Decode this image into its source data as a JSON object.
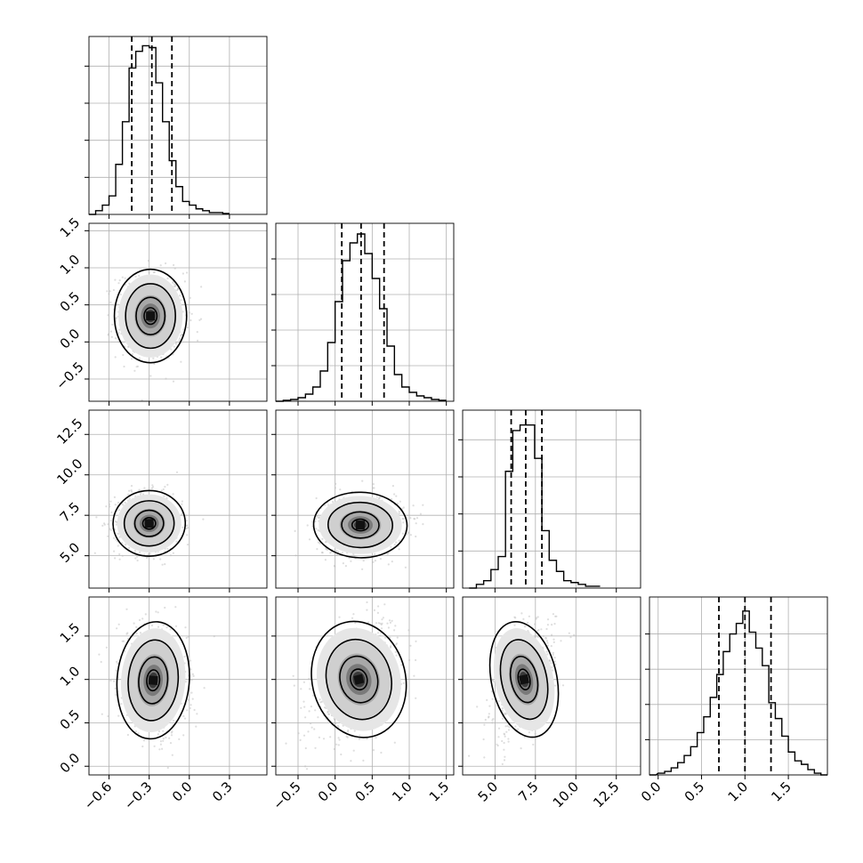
{
  "chart_data": {
    "type": "corner",
    "grid": true,
    "parameters": [
      {
        "range": [
          -0.75,
          0.58
        ],
        "ticks": [
          -0.6,
          -0.3,
          0.0,
          0.3
        ],
        "tick_labels": [
          "−0.6",
          "−0.3",
          "0.0",
          "0.3"
        ]
      },
      {
        "range": [
          -0.8,
          1.6
        ],
        "ticks": [
          -0.5,
          0.0,
          0.5,
          1.0,
          1.5
        ],
        "tick_labels": [
          "−0.5",
          "0.0",
          "0.5",
          "1.0",
          "1.5"
        ]
      },
      {
        "range": [
          3.0,
          14.0
        ],
        "ticks": [
          5.0,
          7.5,
          10.0,
          12.5
        ],
        "tick_labels": [
          "5.0",
          "7.5",
          "10.0",
          "12.5"
        ]
      },
      {
        "range": [
          -0.1,
          1.95
        ],
        "ticks": [
          0.0,
          0.5,
          1.0,
          1.5
        ],
        "tick_labels": [
          "0.0",
          "0.5",
          "1.0",
          "1.5"
        ]
      }
    ],
    "histograms": [
      {
        "bin_width": 0.05,
        "bins": [
          [
            -0.75,
            0
          ],
          [
            -0.7,
            2
          ],
          [
            -0.65,
            5
          ],
          [
            -0.6,
            10
          ],
          [
            -0.55,
            27
          ],
          [
            -0.5,
            50
          ],
          [
            -0.45,
            79
          ],
          [
            -0.4,
            88
          ],
          [
            -0.35,
            91
          ],
          [
            -0.3,
            90
          ],
          [
            -0.25,
            71
          ],
          [
            -0.2,
            50
          ],
          [
            -0.15,
            29
          ],
          [
            -0.1,
            15
          ],
          [
            -0.05,
            7
          ],
          [
            0.0,
            5
          ],
          [
            0.05,
            3
          ],
          [
            0.1,
            2
          ],
          [
            0.15,
            1
          ],
          [
            0.2,
            1
          ],
          [
            0.25,
            0.5
          ]
        ],
        "quantiles": [
          -0.43,
          -0.28,
          -0.13
        ],
        "ymax": 96
      },
      {
        "bin_width": 0.1,
        "bins": [
          [
            -0.8,
            0
          ],
          [
            -0.7,
            0.5
          ],
          [
            -0.6,
            1
          ],
          [
            -0.5,
            2
          ],
          [
            -0.4,
            4
          ],
          [
            -0.3,
            8
          ],
          [
            -0.2,
            17
          ],
          [
            -0.1,
            33
          ],
          [
            0.0,
            56
          ],
          [
            0.1,
            79
          ],
          [
            0.2,
            89
          ],
          [
            0.3,
            94
          ],
          [
            0.4,
            83
          ],
          [
            0.5,
            69
          ],
          [
            0.6,
            52
          ],
          [
            0.7,
            31
          ],
          [
            0.8,
            15
          ],
          [
            0.9,
            8
          ],
          [
            1.0,
            5
          ],
          [
            1.1,
            3
          ],
          [
            1.2,
            2
          ],
          [
            1.3,
            1
          ],
          [
            1.4,
            0.5
          ]
        ],
        "quantiles": [
          0.09,
          0.35,
          0.66
        ],
        "ymax": 100
      },
      {
        "bin_width": 0.45,
        "bins": [
          [
            3.4,
            0
          ],
          [
            3.85,
            2
          ],
          [
            4.3,
            4
          ],
          [
            4.75,
            10
          ],
          [
            5.2,
            17
          ],
          [
            5.65,
            63
          ],
          [
            6.1,
            85
          ],
          [
            6.55,
            88
          ],
          [
            7.0,
            88
          ],
          [
            7.45,
            70
          ],
          [
            7.9,
            31
          ],
          [
            8.35,
            15
          ],
          [
            8.8,
            9
          ],
          [
            9.25,
            4
          ],
          [
            9.7,
            3
          ],
          [
            10.15,
            2
          ],
          [
            10.6,
            1
          ],
          [
            11.05,
            1
          ]
        ],
        "quantiles": [
          6.0,
          6.9,
          7.9
        ],
        "ymax": 96
      },
      {
        "bin_width": 0.075,
        "bins": [
          [
            -0.1,
            0
          ],
          [
            0.0,
            1
          ],
          [
            0.075,
            2
          ],
          [
            0.15,
            4
          ],
          [
            0.225,
            7
          ],
          [
            0.3,
            11
          ],
          [
            0.375,
            16
          ],
          [
            0.45,
            24
          ],
          [
            0.525,
            33
          ],
          [
            0.6,
            44
          ],
          [
            0.675,
            57
          ],
          [
            0.75,
            70
          ],
          [
            0.825,
            80
          ],
          [
            0.9,
            86
          ],
          [
            0.975,
            93
          ],
          [
            1.05,
            81
          ],
          [
            1.125,
            72
          ],
          [
            1.2,
            62
          ],
          [
            1.275,
            41
          ],
          [
            1.35,
            32
          ],
          [
            1.425,
            22
          ],
          [
            1.5,
            13
          ],
          [
            1.575,
            8
          ],
          [
            1.65,
            6
          ],
          [
            1.725,
            3
          ],
          [
            1.8,
            1
          ],
          [
            1.875,
            0
          ]
        ],
        "quantiles": [
          0.7,
          1.0,
          1.3
        ],
        "ymax": 101
      }
    ],
    "joint_centers": {
      "1_0": [
        -0.29,
        0.35
      ],
      "2_0": [
        -0.3,
        7.0
      ],
      "2_1": [
        0.34,
        6.9
      ],
      "3_0": [
        -0.27,
        0.99
      ],
      "3_1": [
        0.32,
        1.0
      ],
      "3_2": [
        6.8,
        1.0
      ]
    }
  }
}
